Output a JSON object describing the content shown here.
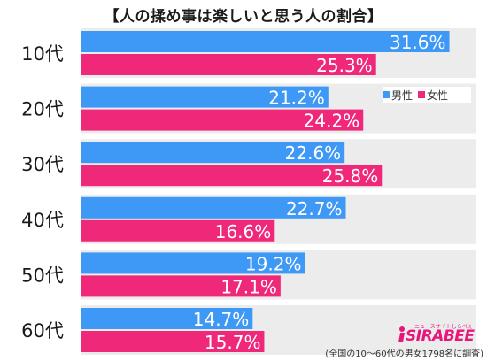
{
  "title": "【人の揉め事は楽しいと思う人の割合】",
  "legend": {
    "male": "男性",
    "female": "女性"
  },
  "footnote": "(全国の10～60代の男女1798名に調査)",
  "logo": {
    "text": "SIRABEE",
    "tagline": "ニュースサイトしらべぇ"
  },
  "colors": {
    "male": "#3e98f5",
    "female": "#f0287a",
    "panel": "#ececec",
    "label_text": "#ffffff"
  },
  "chart_data": {
    "type": "bar",
    "orientation": "horizontal",
    "categories": [
      "10代",
      "20代",
      "30代",
      "40代",
      "50代",
      "60代"
    ],
    "series": [
      {
        "name": "男性",
        "values": [
          31.6,
          21.2,
          22.6,
          22.7,
          19.2,
          14.7
        ]
      },
      {
        "name": "女性",
        "values": [
          25.3,
          24.2,
          25.8,
          16.6,
          17.1,
          15.7
        ]
      }
    ],
    "value_suffix": "%",
    "legend_position": "top-right"
  }
}
